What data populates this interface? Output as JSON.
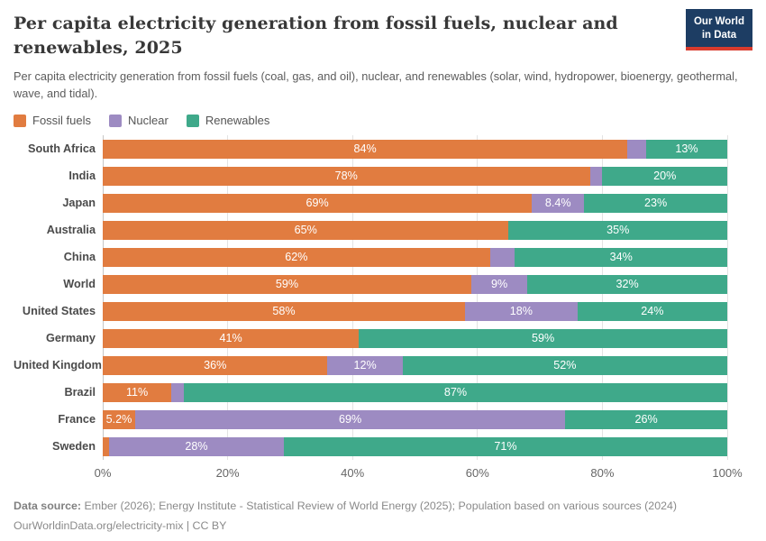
{
  "header": {
    "title": "Per capita electricity generation from fossil fuels, nuclear and renewables, 2025",
    "subtitle": "Per capita electricity generation from fossil fuels (coal, gas, and oil), nuclear, and renewables (solar, wind, hydropower, bioenergy, geothermal, wave, and tidal).",
    "logo": {
      "line1": "Our World",
      "line2": "in Data",
      "bg_color": "#1d3d63",
      "accent_color": "#d93b2d"
    }
  },
  "legend": {
    "items": [
      {
        "label": "Fossil fuels",
        "color": "#e17c40"
      },
      {
        "label": "Nuclear",
        "color": "#9d8bc2"
      },
      {
        "label": "Renewables",
        "color": "#3fa98a"
      }
    ]
  },
  "chart_data": {
    "type": "bar",
    "orientation": "horizontal",
    "stacked": true,
    "unit": "%",
    "xlim": [
      0,
      100
    ],
    "grid": true,
    "legend_position": "top",
    "categories": [
      "South Africa",
      "India",
      "Japan",
      "Australia",
      "China",
      "World",
      "United States",
      "Germany",
      "United Kingdom",
      "Brazil",
      "France",
      "Sweden"
    ],
    "series": [
      {
        "name": "Fossil fuels",
        "color": "#e17c40",
        "values": [
          84,
          78,
          69,
          65,
          62,
          59,
          58,
          41,
          36,
          11,
          5.2,
          1
        ]
      },
      {
        "name": "Nuclear",
        "color": "#9d8bc2",
        "values": [
          3,
          2,
          8.4,
          0,
          4,
          9,
          18,
          0,
          12,
          2,
          69,
          28
        ]
      },
      {
        "name": "Renewables",
        "color": "#3fa98a",
        "values": [
          13,
          20,
          23,
          35,
          34,
          32,
          24,
          59,
          52,
          87,
          26,
          71
        ]
      }
    ],
    "bar_labels": [
      [
        "84%",
        "",
        "13%"
      ],
      [
        "78%",
        "",
        "20%"
      ],
      [
        "69%",
        "8.4%",
        "23%"
      ],
      [
        "65%",
        "",
        "35%"
      ],
      [
        "62%",
        "",
        "34%"
      ],
      [
        "59%",
        "9%",
        "32%"
      ],
      [
        "58%",
        "18%",
        "24%"
      ],
      [
        "41%",
        "",
        "59%"
      ],
      [
        "36%",
        "12%",
        "52%"
      ],
      [
        "11%",
        "",
        "87%"
      ],
      [
        "5.2%",
        "69%",
        "26%"
      ],
      [
        "",
        "28%",
        "71%"
      ]
    ],
    "xticks": [
      {
        "pos": 0,
        "label": "0%"
      },
      {
        "pos": 20,
        "label": "20%"
      },
      {
        "pos": 40,
        "label": "40%"
      },
      {
        "pos": 60,
        "label": "60%"
      },
      {
        "pos": 80,
        "label": "80%"
      },
      {
        "pos": 100,
        "label": "100%"
      }
    ]
  },
  "footer": {
    "source_label": "Data source:",
    "source_text": " Ember (2026); Energy Institute - Statistical Review of World Energy (2025); Population based on various sources (2024)",
    "link_text": "OurWorldinData.org/electricity-mix | CC BY"
  }
}
